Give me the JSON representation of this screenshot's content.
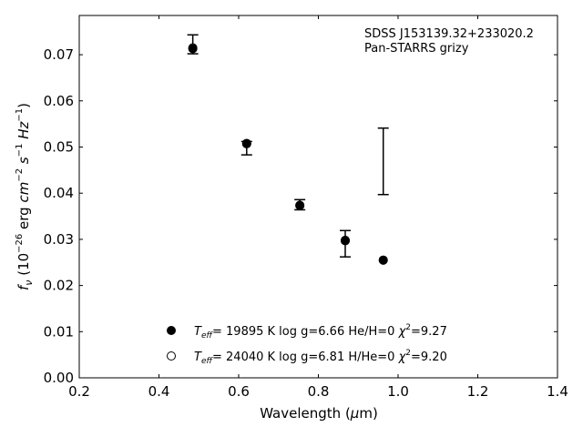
{
  "chart_data": {
    "type": "scatter",
    "xlabel": "Wavelength (μm)",
    "ylabel": "f_ν (10^-26 erg cm^-2 s^-1 Hz^-1)",
    "xlim": [
      0.2,
      1.4
    ],
    "ylim": [
      0.0,
      0.0785
    ],
    "xticks": [
      "0.2",
      "0.4",
      "0.6",
      "0.8",
      "1.0",
      "1.2",
      "1.4"
    ],
    "yticks": [
      "0.00",
      "0.01",
      "0.02",
      "0.03",
      "0.04",
      "0.05",
      "0.06",
      "0.07"
    ],
    "annotation": [
      "SDSS J153139.32+233020.2",
      "Pan-STARRS grizy"
    ],
    "observed": {
      "x": [
        0.4849,
        0.6201,
        0.7535,
        0.8674,
        0.9628
      ],
      "y_low": [
        0.0702,
        0.0483,
        0.0364,
        0.0262,
        0.0397
      ],
      "y_high": [
        0.0743,
        0.0512,
        0.0386,
        0.0319,
        0.0541
      ]
    },
    "series": [
      {
        "marker": "filled",
        "legend": {
          "teff": "= 19895 K  log g=6.66  He/H=0  ",
          "chi2": "=9.27"
        },
        "x": [
          0.4849,
          0.6201,
          0.7535,
          0.8674,
          0.9628
        ],
        "y": [
          0.0713,
          0.0507,
          0.0374,
          0.0298,
          0.0255
        ]
      },
      {
        "marker": "open",
        "legend": {
          "teff": "= 24040 K  log g=6.81  H/He=0  ",
          "chi2": "=9.20"
        },
        "x": [
          0.4849,
          0.6201,
          0.7535,
          0.8674,
          0.9628
        ],
        "y": [
          0.0715,
          0.0508,
          0.0373,
          0.0297,
          0.0255
        ]
      }
    ],
    "legend_position": "lower-center",
    "grid": false
  }
}
